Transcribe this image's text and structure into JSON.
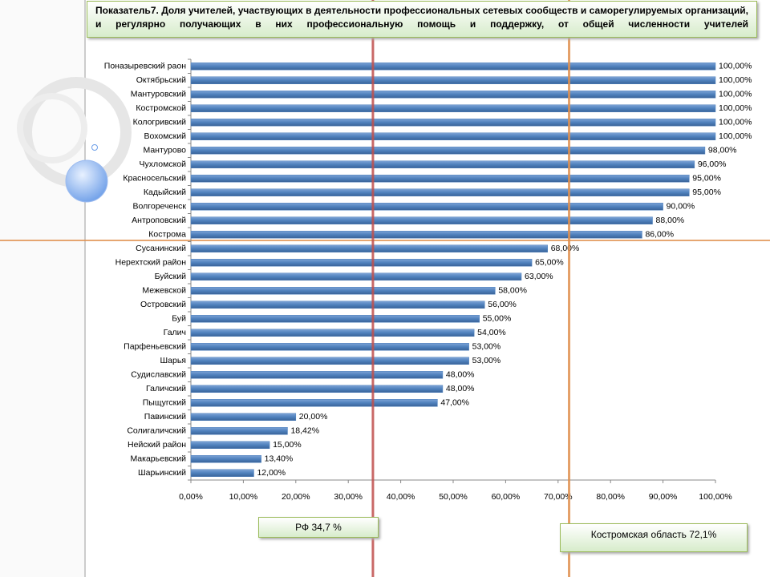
{
  "chart_data": {
    "type": "barh",
    "title": "Показатель7. Доля учителей, участвующих в деятельности профессиональных сетевых сообществ и саморегулируемых организаций, и регулярно получающих в них профессиональную помощь и поддержку, от общей численности  учителей",
    "categories": [
      "Поназыревский раон",
      "Октябрьский",
      "Мантуровский",
      "Костромской",
      "Кологривский",
      "Вохомский",
      "Мантурово",
      "Чухломской",
      "Красносельский",
      "Кадыйский",
      "Волгореченск",
      "Антроповский",
      "Кострома",
      "Сусанинский",
      "Нерехтский район",
      "Буйский",
      "Межевской",
      "Островский",
      "Буй",
      "Галич",
      "Парфеньевский",
      "Шарья",
      "Судиславский",
      "Галичский",
      "Пыщугский",
      "Павинский",
      "Солигаличский",
      "Нейский район",
      "Макарьевский",
      "Шарьинский"
    ],
    "values": [
      100,
      100,
      100,
      100,
      100,
      100,
      98,
      96,
      95,
      95,
      90,
      88,
      86,
      68,
      65,
      63,
      58,
      56,
      55,
      54,
      53,
      53,
      48,
      48,
      47,
      20,
      18.42,
      15,
      13.4,
      12
    ],
    "value_labels": [
      "100,00%",
      "100,00%",
      "100,00%",
      "100,00%",
      "100,00%",
      "100,00%",
      "98,00%",
      "96,00%",
      "95,00%",
      "95,00%",
      "90,00%",
      "88,00%",
      "86,00%",
      "68,00%",
      "65,00%",
      "63,00%",
      "58,00%",
      "56,00%",
      "55,00%",
      "54,00%",
      "53,00%",
      "53,00%",
      "48,00%",
      "48,00%",
      "47,00%",
      "20,00%",
      "18,42%",
      "15,00%",
      "13,40%",
      "12,00%"
    ],
    "color": "#4f81bd",
    "xlim": [
      0,
      100
    ],
    "xticks": [
      {
        "value": 0,
        "label": "0,00%"
      },
      {
        "value": 10,
        "label": "10,00%"
      },
      {
        "value": 20,
        "label": "20,00%"
      },
      {
        "value": 30,
        "label": "30,00%"
      },
      {
        "value": 40,
        "label": "40,00%"
      },
      {
        "value": 50,
        "label": "50,00%"
      },
      {
        "value": 60,
        "label": "60,00%"
      },
      {
        "value": 70,
        "label": "70,00%"
      },
      {
        "value": 80,
        "label": "80,00%"
      },
      {
        "value": 90,
        "label": "90,00%"
      },
      {
        "value": 100,
        "label": "100,00%"
      }
    ],
    "reference_lines": [
      {
        "value": 34.7,
        "label": "РФ  34,7 %",
        "color": "#c0504d"
      },
      {
        "value": 72.1,
        "label": "Костромская  область  72,1%",
        "color": "#e0904e"
      }
    ]
  }
}
